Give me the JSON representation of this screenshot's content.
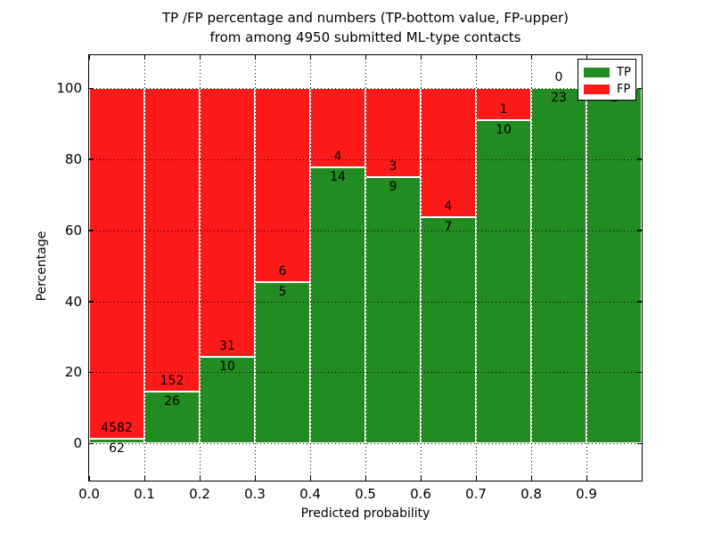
{
  "title": {
    "line1": "TP /FP percentage and numbers (TP-bottom value, FP-upper)",
    "line2": "from among 4950 submitted ML-type contacts"
  },
  "axes": {
    "xlabel": "Predicted probability",
    "ylabel": "Percentage",
    "x_tick_labels": [
      "0.0",
      "0.1",
      "0.2",
      "0.3",
      "0.4",
      "0.5",
      "0.6",
      "0.7",
      "0.8",
      "0.9"
    ],
    "y_tick_labels": [
      "0",
      "20",
      "40",
      "60",
      "80",
      "100"
    ],
    "y_tick_values": [
      0,
      20,
      40,
      60,
      80,
      100
    ]
  },
  "legend": {
    "position": "upper right",
    "items": [
      {
        "label": "TP",
        "color": "#228b22"
      },
      {
        "label": "FP",
        "color": "#ff1a1a"
      }
    ]
  },
  "colors": {
    "tp": "#228b22",
    "fp": "#ff1a1a",
    "bar_edge": "#ffffff",
    "text": "#000000",
    "background": "#ffffff"
  },
  "chart_data": {
    "type": "bar",
    "stacked": true,
    "normalized_to_percent": true,
    "title": "TP /FP percentage and numbers (TP-bottom value, FP-upper) from among 4950 submitted ML-type contacts",
    "xlabel": "Predicted probability",
    "ylabel": "Percentage",
    "xlim": [
      0.0,
      1.0
    ],
    "ylim": [
      -10,
      110
    ],
    "grid": "dotted, both axes, drawn over bars",
    "legend_position": "upper right",
    "total_contacts": 4950,
    "categories": [
      "0.0-0.1",
      "0.1-0.2",
      "0.2-0.3",
      "0.3-0.4",
      "0.4-0.5",
      "0.5-0.6",
      "0.6-0.7",
      "0.7-0.8",
      "0.8-0.9",
      "0.9-1.0"
    ],
    "series": [
      {
        "name": "TP",
        "color": "#228b22",
        "counts": [
          62,
          26,
          10,
          5,
          14,
          9,
          7,
          10,
          23,
          1
        ]
      },
      {
        "name": "FP",
        "color": "#ff1a1a",
        "counts": [
          4582,
          152,
          31,
          6,
          4,
          3,
          4,
          1,
          0,
          0
        ]
      }
    ],
    "bins": [
      {
        "x_start": 0.0,
        "x_end": 0.1,
        "tp": 62,
        "fp": 4582,
        "tp_pct": 1.3
      },
      {
        "x_start": 0.1,
        "x_end": 0.2,
        "tp": 26,
        "fp": 152,
        "tp_pct": 14.6
      },
      {
        "x_start": 0.2,
        "x_end": 0.3,
        "tp": 10,
        "fp": 31,
        "tp_pct": 24.4
      },
      {
        "x_start": 0.3,
        "x_end": 0.4,
        "tp": 5,
        "fp": 6,
        "tp_pct": 45.5
      },
      {
        "x_start": 0.4,
        "x_end": 0.5,
        "tp": 14,
        "fp": 4,
        "tp_pct": 77.8
      },
      {
        "x_start": 0.5,
        "x_end": 0.6,
        "tp": 9,
        "fp": 3,
        "tp_pct": 75.0
      },
      {
        "x_start": 0.6,
        "x_end": 0.7,
        "tp": 7,
        "fp": 4,
        "tp_pct": 63.6
      },
      {
        "x_start": 0.7,
        "x_end": 0.8,
        "tp": 10,
        "fp": 1,
        "tp_pct": 90.9
      },
      {
        "x_start": 0.8,
        "x_end": 0.9,
        "tp": 23,
        "fp": 0,
        "tp_pct": 100.0
      },
      {
        "x_start": 0.9,
        "x_end": 1.0,
        "tp": 1,
        "fp": 0,
        "tp_pct": 100.0
      }
    ],
    "notes": "FP count label of last bin is covered by the legend box"
  }
}
